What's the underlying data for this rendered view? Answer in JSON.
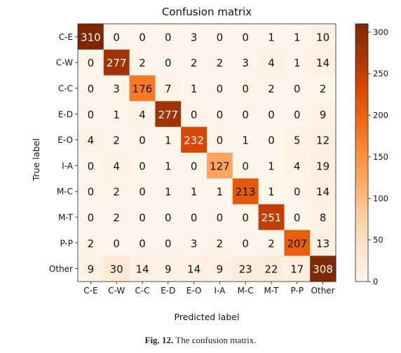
{
  "chart_data": {
    "type": "heatmap",
    "title": "Confusion matrix",
    "xlabel": "Predicted label",
    "ylabel": "True label",
    "x_categories": [
      "C-E",
      "C-W",
      "C-C",
      "E-D",
      "E-O",
      "I-A",
      "M-C",
      "M-T",
      "P-P",
      "Other"
    ],
    "y_categories": [
      "C-E",
      "C-W",
      "C-C",
      "E-D",
      "E-O",
      "I-A",
      "M-C",
      "M-T",
      "P-P",
      "Other"
    ],
    "values": [
      [
        310,
        0,
        0,
        0,
        3,
        0,
        0,
        1,
        1,
        10
      ],
      [
        0,
        277,
        2,
        0,
        2,
        2,
        3,
        4,
        1,
        14
      ],
      [
        0,
        3,
        176,
        7,
        1,
        0,
        0,
        2,
        0,
        2
      ],
      [
        0,
        1,
        4,
        277,
        0,
        0,
        0,
        0,
        0,
        9
      ],
      [
        4,
        2,
        0,
        1,
        232,
        0,
        1,
        0,
        5,
        12
      ],
      [
        0,
        4,
        0,
        1,
        0,
        127,
        0,
        1,
        4,
        19
      ],
      [
        0,
        2,
        0,
        1,
        1,
        1,
        213,
        1,
        0,
        14
      ],
      [
        0,
        2,
        0,
        0,
        0,
        0,
        0,
        251,
        0,
        8
      ],
      [
        2,
        0,
        0,
        0,
        3,
        2,
        0,
        2,
        207,
        13
      ],
      [
        9,
        30,
        14,
        9,
        14,
        9,
        23,
        22,
        17,
        308
      ]
    ],
    "colormap": "Oranges",
    "colorbar": {
      "range": [
        0,
        310
      ],
      "ticks": [
        0,
        50,
        100,
        150,
        200,
        250,
        300
      ]
    }
  },
  "caption": {
    "label": "Fig. 12.",
    "text": "The confusion matrix."
  }
}
